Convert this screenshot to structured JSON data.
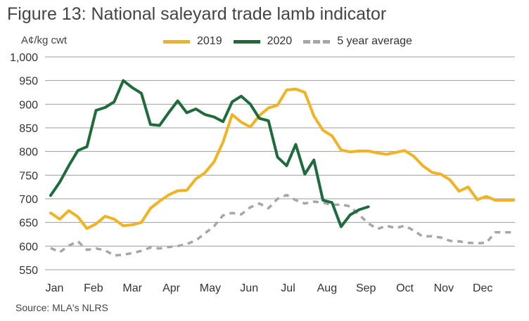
{
  "title": "Figure 13: National saleyard trade lamb indicator",
  "unit_label": "A¢/kg cwt",
  "source": "Source: MLA's NLRS",
  "chart_data": {
    "type": "line",
    "title": "Figure 13: National saleyard trade lamb indicator",
    "xlabel": "",
    "ylabel": "A¢/kg cwt",
    "ylim": [
      550,
      1000
    ],
    "yticks": [
      550,
      600,
      650,
      700,
      750,
      800,
      850,
      900,
      950,
      1000
    ],
    "ytick_labels": [
      "550",
      "600",
      "650",
      "700",
      "750",
      "800",
      "850",
      "900",
      "950",
      "1,000"
    ],
    "categories": [
      "Jan",
      "Feb",
      "Mar",
      "Apr",
      "May",
      "Jun",
      "Jul",
      "Aug",
      "Sep",
      "Oct",
      "Nov",
      "Dec"
    ],
    "x_unit": "week",
    "xlim": [
      1,
      52
    ],
    "grid": "horizontal",
    "legend_position": "top",
    "series": [
      {
        "name": "2019",
        "color": "#F0B323",
        "style": "solid",
        "x": [
          1,
          2,
          3,
          4,
          5,
          6,
          7,
          8,
          9,
          10,
          11,
          12,
          13,
          14,
          15,
          16,
          17,
          18,
          19,
          20,
          21,
          22,
          23,
          24,
          25,
          26,
          27,
          28,
          29,
          30,
          31,
          32,
          33,
          34,
          35,
          36,
          37,
          38,
          39,
          40,
          41,
          42,
          43,
          44,
          45,
          46,
          47,
          48,
          49,
          50,
          51,
          52
        ],
        "values": [
          670,
          657,
          675,
          662,
          637,
          647,
          663,
          657,
          643,
          645,
          650,
          680,
          695,
          708,
          717,
          718,
          742,
          755,
          778,
          820,
          878,
          862,
          852,
          876,
          892,
          898,
          930,
          932,
          925,
          875,
          845,
          833,
          803,
          799,
          801,
          801,
          797,
          794,
          798,
          802,
          790,
          770,
          756,
          752,
          740,
          716,
          725,
          698,
          705,
          697,
          697,
          697
        ]
      },
      {
        "name": "2020",
        "color": "#1E6B3C",
        "style": "solid",
        "x": [
          1,
          2,
          3,
          4,
          5,
          6,
          7,
          8,
          9,
          10,
          11,
          12,
          13,
          14,
          15,
          16,
          17,
          18,
          19,
          20,
          21,
          22,
          23,
          24,
          25,
          26,
          27,
          28,
          29,
          30,
          31,
          32,
          33,
          34,
          35,
          36
        ],
        "values": [
          707,
          735,
          770,
          802,
          810,
          887,
          893,
          905,
          950,
          935,
          923,
          857,
          855,
          882,
          907,
          882,
          890,
          878,
          873,
          863,
          905,
          917,
          900,
          870,
          865,
          788,
          770,
          815,
          752,
          782,
          697,
          692,
          641,
          666,
          677,
          683
        ]
      },
      {
        "name": "5 year average",
        "color": "#A6A6A6",
        "style": "dashed",
        "x": [
          1,
          2,
          3,
          4,
          5,
          6,
          7,
          8,
          9,
          10,
          11,
          12,
          13,
          14,
          15,
          16,
          17,
          18,
          19,
          20,
          21,
          22,
          23,
          24,
          25,
          26,
          27,
          28,
          29,
          30,
          31,
          32,
          33,
          34,
          35,
          36,
          37,
          38,
          39,
          40,
          41,
          42,
          43,
          44,
          45,
          46,
          47,
          48,
          49,
          50,
          51,
          52
        ],
        "values": [
          596,
          587,
          601,
          610,
          592,
          595,
          591,
          580,
          582,
          585,
          590,
          597,
          595,
          598,
          600,
          604,
          612,
          627,
          642,
          665,
          670,
          667,
          682,
          690,
          680,
          700,
          708,
          697,
          690,
          694,
          692,
          687,
          688,
          684,
          666,
          648,
          636,
          643,
          638,
          643,
          633,
          620,
          621,
          618,
          611,
          610,
          607,
          606,
          607,
          629,
          629,
          629
        ]
      }
    ]
  }
}
